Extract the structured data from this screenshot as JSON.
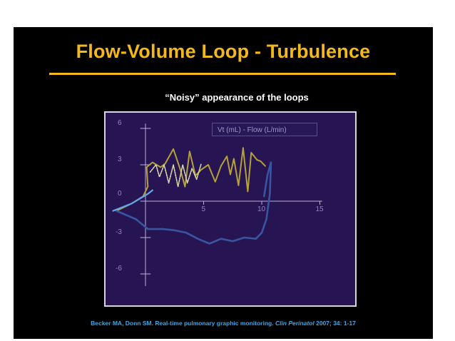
{
  "slide": {
    "title": "Flow-Volume Loop - Turbulence",
    "subtitle": "“Noisy” appearance of the loops",
    "citation": {
      "prefix": "Becker MA, Donn SM. Real-time pulmonary graphic monitoring. ",
      "journal": "Clin Perinatol",
      "suffix": " 2007; 34: 1-17"
    }
  },
  "chart_data": {
    "type": "line",
    "title": "Vt (mL) - Flow (L/min)",
    "xlabel": "Vt (mL)",
    "ylabel": "Flow (L/min)",
    "xlim": [
      -3,
      16
    ],
    "ylim": [
      -7,
      7
    ],
    "x_ticks": [
      "5",
      "10",
      "15"
    ],
    "y_ticks": [
      "6",
      "3",
      "0",
      "-3",
      "-6"
    ],
    "legend": "top-center",
    "series": [
      {
        "color": "#b5a13a",
        "values": [
          [
            -2.5,
            -0.8
          ],
          [
            -1.2,
            -0.2
          ],
          [
            -0.2,
            0.4
          ],
          [
            0.2,
            1.2
          ],
          [
            0.1,
            2.8
          ],
          [
            0.6,
            3.2
          ],
          [
            1.3,
            2.8
          ],
          [
            1.7,
            3.1
          ],
          [
            2.4,
            4.3
          ],
          [
            3.0,
            2.6
          ],
          [
            3.4,
            1.2
          ],
          [
            3.8,
            4.1
          ],
          [
            4.3,
            2.1
          ],
          [
            4.8,
            2.6
          ],
          [
            5.4,
            3.0
          ],
          [
            6.0,
            1.6
          ],
          [
            6.5,
            2.9
          ],
          [
            7.0,
            3.7
          ],
          [
            7.3,
            2.2
          ],
          [
            7.6,
            3.5
          ],
          [
            8.0,
            1.3
          ],
          [
            8.4,
            4.4
          ],
          [
            8.8,
            0.8
          ],
          [
            9.1,
            4.0
          ],
          [
            9.6,
            3.4
          ],
          [
            9.9,
            3.3
          ],
          [
            10.3,
            2.9
          ]
        ]
      },
      {
        "color": "#d8d8a8",
        "values": [
          [
            0.4,
            2.4
          ],
          [
            0.9,
            3.0
          ],
          [
            1.2,
            2.0
          ],
          [
            1.6,
            3.0
          ],
          [
            2.0,
            1.5
          ],
          [
            2.4,
            3.0
          ],
          [
            2.8,
            1.2
          ],
          [
            3.2,
            3.0
          ],
          [
            3.6,
            1.5
          ],
          [
            4.0,
            2.7
          ],
          [
            4.4,
            1.8
          ],
          [
            4.8,
            3.1
          ]
        ]
      },
      {
        "color": "#3a55a0",
        "values": [
          [
            -2.5,
            -0.8
          ],
          [
            -0.8,
            -1.5
          ],
          [
            0.2,
            -2.3
          ],
          [
            1.5,
            -2.3
          ],
          [
            2.5,
            -2.4
          ],
          [
            3.5,
            -2.6
          ],
          [
            4.5,
            -3.1
          ],
          [
            5.5,
            -3.5
          ],
          [
            6.5,
            -3.1
          ],
          [
            7.5,
            -3.3
          ],
          [
            8.5,
            -3.0
          ],
          [
            9.5,
            -3.1
          ],
          [
            10.0,
            -2.6
          ],
          [
            10.4,
            -1.5
          ],
          [
            10.7,
            0.6
          ],
          [
            10.8,
            3.2
          ],
          [
            10.5,
            2.2
          ],
          [
            10.2,
            0.4
          ]
        ]
      },
      {
        "color": "#62a8e8",
        "values": [
          [
            -2.8,
            -0.8
          ],
          [
            -1.2,
            -0.2
          ],
          [
            0.2,
            0.6
          ],
          [
            0.6,
            0.9
          ]
        ]
      }
    ]
  }
}
